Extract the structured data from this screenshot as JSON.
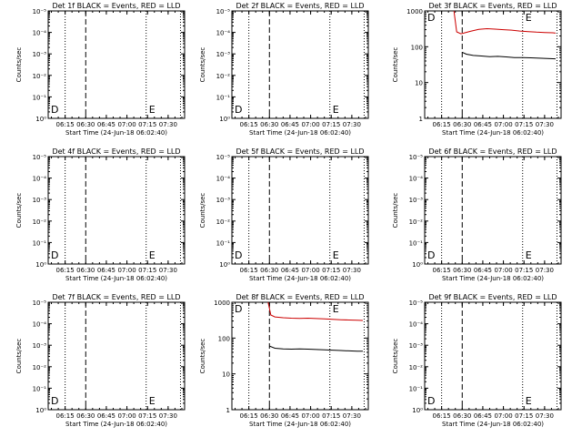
{
  "colors": {
    "events": "#000000",
    "lld": "#cc0000",
    "axes": "#000000",
    "background": "#ffffff"
  },
  "x_ticks": [
    "06:15",
    "06:30",
    "06:45",
    "07:00",
    "07:15",
    "07:30"
  ],
  "xlabel": "Start Time (24-Jun-18 06:02:40)",
  "ylabel": "Counts/sec",
  "marker_labels": {
    "start": "D",
    "end": "E"
  },
  "chart_data": [
    {
      "type": "line",
      "title": "Det 1f BLACK = Events, RED = LLD",
      "x_range": [
        "06:02:40",
        "07:42:00"
      ],
      "y_tick_labels": [
        "10⁰",
        "10⁻¹",
        "10⁻²",
        "10⁻³",
        "10⁻⁴",
        "10⁻⁵"
      ],
      "dotted_lines": [
        "06:15",
        "07:14",
        "07:39"
      ],
      "dashed_line": "06:30",
      "series": []
    },
    {
      "type": "line",
      "title": "Det 2f BLACK = Events, RED = LLD",
      "x_range": [
        "06:02:40",
        "07:42:00"
      ],
      "y_tick_labels": [
        "10⁰",
        "10⁻¹",
        "10⁻²",
        "10⁻³",
        "10⁻⁴",
        "10⁻⁵"
      ],
      "dotted_lines": [
        "06:15",
        "07:14",
        "07:39"
      ],
      "dashed_line": "06:30",
      "series": []
    },
    {
      "type": "line",
      "title": "Det 3f BLACK = Events, RED = LLD",
      "x_range": [
        "06:02:40",
        "07:42:00"
      ],
      "y_scale": "log",
      "ylim": [
        1,
        1000
      ],
      "y_tick_labels": [
        "1",
        "10",
        "100",
        "1000"
      ],
      "dotted_lines": [
        "06:15",
        "07:14",
        "07:39"
      ],
      "dashed_line": "06:30",
      "series": [
        {
          "key": "lld",
          "points": [
            [
              "06:24",
              1000
            ],
            [
              "06:26",
              260
            ],
            [
              "06:29",
              230
            ],
            [
              "06:31",
              240
            ],
            [
              "06:36",
              270
            ],
            [
              "06:42",
              305
            ],
            [
              "06:48",
              320
            ],
            [
              "06:54",
              310
            ],
            [
              "07:00",
              300
            ],
            [
              "07:06",
              290
            ],
            [
              "07:12",
              275
            ],
            [
              "07:18",
              265
            ],
            [
              "07:24",
              255
            ],
            [
              "07:30",
              250
            ],
            [
              "07:36",
              245
            ],
            [
              "07:38",
              240
            ]
          ]
        },
        {
          "key": "events",
          "points": [
            [
              "06:30",
              70
            ],
            [
              "06:33",
              62
            ],
            [
              "06:38",
              57
            ],
            [
              "06:44",
              55
            ],
            [
              "06:50",
              53
            ],
            [
              "06:56",
              54
            ],
            [
              "07:02",
              52
            ],
            [
              "07:08",
              50
            ],
            [
              "07:14",
              50
            ],
            [
              "07:20",
              49
            ],
            [
              "07:26",
              48
            ],
            [
              "07:32",
              47
            ],
            [
              "07:38",
              46
            ]
          ]
        }
      ]
    },
    {
      "type": "line",
      "title": "Det 4f BLACK = Events, RED = LLD",
      "x_range": [
        "06:02:40",
        "07:42:00"
      ],
      "y_tick_labels": [
        "10⁰",
        "10⁻¹",
        "10⁻²",
        "10⁻³",
        "10⁻⁴",
        "10⁻⁵"
      ],
      "dotted_lines": [
        "06:15",
        "07:14",
        "07:39"
      ],
      "dashed_line": "06:30",
      "series": []
    },
    {
      "type": "line",
      "title": "Det 5f BLACK = Events, RED = LLD",
      "x_range": [
        "06:02:40",
        "07:42:00"
      ],
      "y_tick_labels": [
        "10⁰",
        "10⁻¹",
        "10⁻²",
        "10⁻³",
        "10⁻⁴",
        "10⁻⁵"
      ],
      "dotted_lines": [
        "06:15",
        "07:14",
        "07:39"
      ],
      "dashed_line": "06:30",
      "series": []
    },
    {
      "type": "line",
      "title": "Det 6f BLACK = Events, RED = LLD",
      "x_range": [
        "06:02:40",
        "07:42:00"
      ],
      "y_tick_labels": [
        "10⁰",
        "10⁻¹",
        "10⁻²",
        "10⁻³",
        "10⁻⁴",
        "10⁻⁵"
      ],
      "dotted_lines": [
        "06:15",
        "07:14",
        "07:39"
      ],
      "dashed_line": "06:30",
      "series": []
    },
    {
      "type": "line",
      "title": "Det 7f BLACK = Events, RED = LLD",
      "x_range": [
        "06:02:40",
        "07:42:00"
      ],
      "y_tick_labels": [
        "10⁰",
        "10⁻¹",
        "10⁻²",
        "10⁻³",
        "10⁻⁴",
        "10⁻⁵"
      ],
      "dotted_lines": [
        "06:15",
        "07:14",
        "07:39"
      ],
      "dashed_line": "06:30",
      "series": []
    },
    {
      "type": "line",
      "title": "Det 8f BLACK = Events, RED = LLD",
      "x_range": [
        "06:02:40",
        "07:42:00"
      ],
      "y_scale": "log",
      "ylim": [
        1,
        1000
      ],
      "y_tick_labels": [
        "1",
        "10",
        "100",
        "1000"
      ],
      "dotted_lines": [
        "06:15",
        "07:14",
        "07:39"
      ],
      "dashed_line": "06:30",
      "series": [
        {
          "key": "lld",
          "points": [
            [
              "06:29",
              1000
            ],
            [
              "06:31",
              440
            ],
            [
              "06:34",
              390
            ],
            [
              "06:40",
              370
            ],
            [
              "06:46",
              360
            ],
            [
              "06:52",
              355
            ],
            [
              "06:58",
              360
            ],
            [
              "07:04",
              350
            ],
            [
              "07:10",
              345
            ],
            [
              "07:16",
              335
            ],
            [
              "07:22",
              325
            ],
            [
              "07:28",
              320
            ],
            [
              "07:34",
              315
            ],
            [
              "07:38",
              310
            ]
          ]
        },
        {
          "key": "events",
          "points": [
            [
              "06:30",
              60
            ],
            [
              "06:34",
              52
            ],
            [
              "06:40",
              50
            ],
            [
              "06:46",
              49
            ],
            [
              "06:52",
              50
            ],
            [
              "06:58",
              49
            ],
            [
              "07:04",
              48
            ],
            [
              "07:10",
              47
            ],
            [
              "07:16",
              46
            ],
            [
              "07:22",
              45
            ],
            [
              "07:28",
              44
            ],
            [
              "07:34",
              43
            ],
            [
              "07:38",
              43
            ]
          ]
        }
      ]
    },
    {
      "type": "line",
      "title": "Det 9f BLACK = Events, RED = LLD",
      "x_range": [
        "06:02:40",
        "07:42:00"
      ],
      "y_tick_labels": [
        "10⁰",
        "10⁻¹",
        "10⁻²",
        "10⁻³",
        "10⁻⁴",
        "10⁻⁵"
      ],
      "dotted_lines": [
        "06:15",
        "07:14",
        "07:39"
      ],
      "dashed_line": "06:30",
      "series": []
    }
  ]
}
